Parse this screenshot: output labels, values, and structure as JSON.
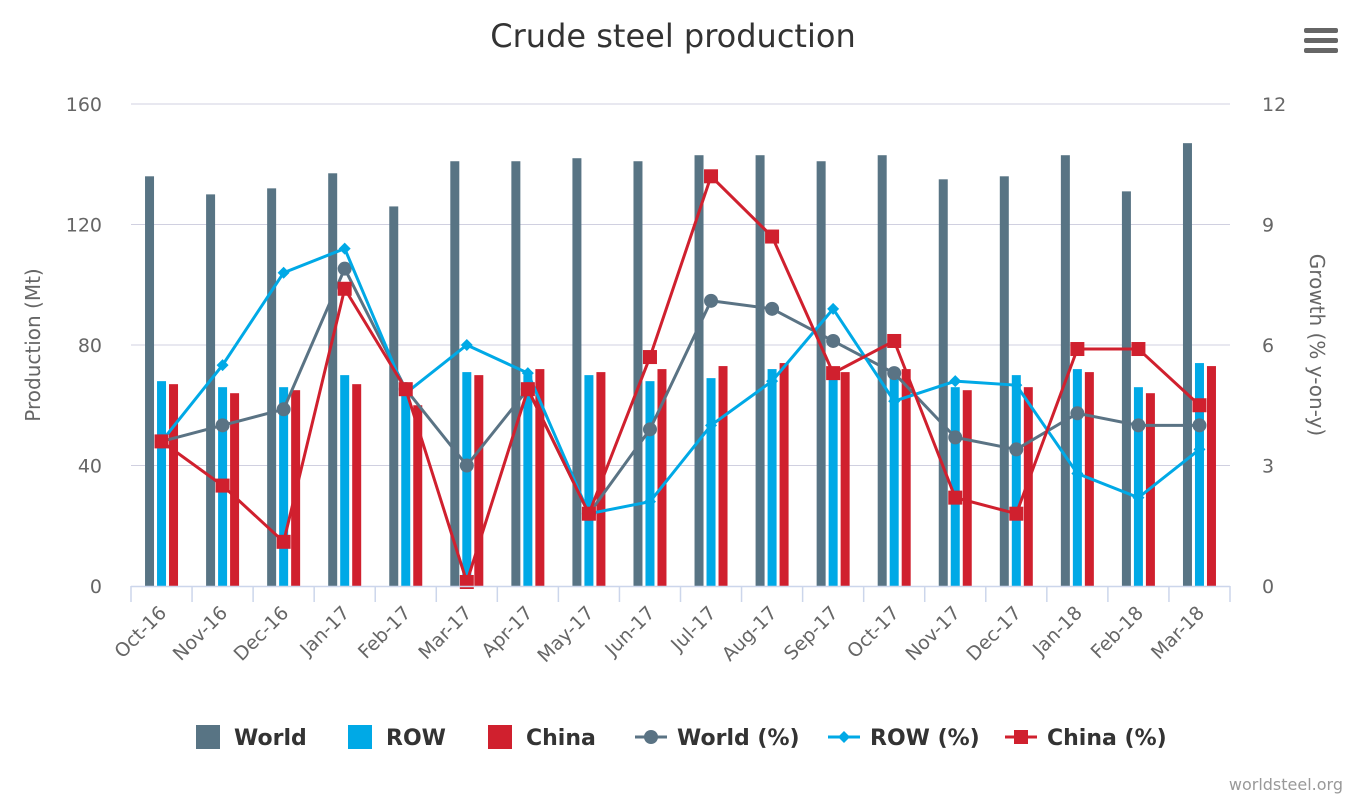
{
  "chart_data": {
    "type": "bar",
    "title": "Crude steel production",
    "ylabel": "Production (Mt)",
    "y2label": "Growth (% y-on-y)",
    "ylim": [
      0,
      160
    ],
    "y2lim": [
      0,
      12
    ],
    "yticks": [
      0,
      40,
      80,
      120,
      160
    ],
    "y2ticks": [
      0,
      3,
      6,
      9,
      12
    ],
    "grid": true,
    "legend_placement": "bottom",
    "categories": [
      "Oct-16",
      "Nov-16",
      "Dec-16",
      "Jan-17",
      "Feb-17",
      "Mar-17",
      "Apr-17",
      "May-17",
      "Jun-17",
      "Jul-17",
      "Aug-17",
      "Sep-17",
      "Oct-17",
      "Nov-17",
      "Dec-17",
      "Jan-18",
      "Feb-18",
      "Mar-18"
    ],
    "series": [
      {
        "name": "World",
        "kind": "bar",
        "axis": "left",
        "color": "#587484",
        "values": [
          136,
          130,
          132,
          137,
          126,
          141,
          141,
          142,
          141,
          143,
          143,
          141,
          143,
          135,
          136,
          143,
          131,
          147
        ]
      },
      {
        "name": "ROW",
        "kind": "bar",
        "axis": "left",
        "color": "#00a9e6",
        "values": [
          68,
          66,
          66,
          70,
          64,
          71,
          70,
          70,
          68,
          69,
          72,
          70,
          70,
          66,
          70,
          72,
          66,
          74
        ]
      },
      {
        "name": "China",
        "kind": "bar",
        "axis": "left",
        "color": "#d0202e",
        "values": [
          67,
          64,
          65,
          67,
          60,
          70,
          72,
          71,
          72,
          73,
          74,
          71,
          72,
          65,
          66,
          71,
          64,
          73
        ]
      },
      {
        "name": "World (%)",
        "kind": "line",
        "marker": "circle",
        "axis": "right",
        "color": "#5a7384",
        "values": [
          3.6,
          4.0,
          4.4,
          7.9,
          4.9,
          3.0,
          4.9,
          1.8,
          3.9,
          7.1,
          6.9,
          6.1,
          5.3,
          3.7,
          3.4,
          4.3,
          4.0,
          4.0
        ]
      },
      {
        "name": "ROW (%)",
        "kind": "line",
        "marker": "diamond",
        "axis": "right",
        "color": "#00a9e6",
        "values": [
          3.6,
          5.5,
          7.8,
          8.4,
          4.8,
          6.0,
          5.3,
          1.8,
          2.1,
          4.0,
          5.1,
          6.9,
          4.6,
          5.1,
          5.0,
          2.8,
          2.2,
          3.4
        ]
      },
      {
        "name": "China (%)",
        "kind": "line",
        "marker": "square",
        "axis": "right",
        "color": "#d0202e",
        "values": [
          3.6,
          2.5,
          1.1,
          7.4,
          4.9,
          0.1,
          4.9,
          1.8,
          5.7,
          10.2,
          8.7,
          5.3,
          6.1,
          2.2,
          1.8,
          5.9,
          5.9,
          4.5
        ]
      }
    ],
    "credit": "worldsteel.org"
  },
  "menu_icon": "hamburger-menu-icon"
}
